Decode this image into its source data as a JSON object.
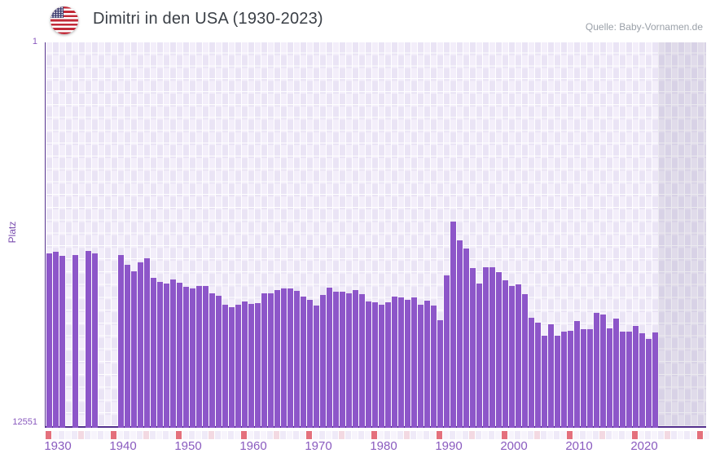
{
  "header": {
    "title": "Dimitri in den USA (1930-2023)",
    "source": "Quelle: Baby-Vornamen.de",
    "flag_icon": "us-flag-round"
  },
  "chart_data": {
    "type": "bar",
    "title": "Dimitri in den USA (1930-2023)",
    "xlabel": "",
    "ylabel": "Platz",
    "y_top_label": "1",
    "y_bottom_label": "12551",
    "ylim": [
      1,
      12551
    ],
    "y_inverted": true,
    "grid": true,
    "legend": "none",
    "x_axis_start": 1930,
    "x_axis_end": 2032,
    "future_band_start": 2024,
    "x_tick_labels": [
      "1930",
      "1940",
      "1950",
      "1960",
      "1970",
      "1980",
      "1990",
      "2000",
      "2010",
      "2020"
    ],
    "x_tick_years": [
      1930,
      1940,
      1950,
      1960,
      1970,
      1980,
      1990,
      2000,
      2010,
      2020
    ],
    "missing_years": [
      1933,
      1935,
      1938,
      1939,
      1940
    ],
    "years": [
      1930,
      1931,
      1932,
      1933,
      1934,
      1935,
      1936,
      1937,
      1938,
      1939,
      1940,
      1941,
      1942,
      1943,
      1944,
      1945,
      1946,
      1947,
      1948,
      1949,
      1950,
      1951,
      1952,
      1953,
      1954,
      1955,
      1956,
      1957,
      1958,
      1959,
      1960,
      1961,
      1962,
      1963,
      1964,
      1965,
      1966,
      1967,
      1968,
      1969,
      1970,
      1971,
      1972,
      1973,
      1974,
      1975,
      1976,
      1977,
      1978,
      1979,
      1980,
      1981,
      1982,
      1983,
      1984,
      1985,
      1986,
      1987,
      1988,
      1989,
      1990,
      1991,
      1992,
      1993,
      1994,
      1995,
      1996,
      1997,
      1998,
      1999,
      2000,
      2001,
      2002,
      2003,
      2004,
      2005,
      2006,
      2007,
      2008,
      2009,
      2010,
      2011,
      2012,
      2013,
      2014,
      2015,
      2016,
      2017,
      2018,
      2019,
      2020,
      2021,
      2022,
      2023
    ],
    "ranks": [
      6875,
      6820,
      6950,
      null,
      6925,
      null,
      6790,
      6875,
      null,
      null,
      null,
      6925,
      7245,
      7455,
      7165,
      7030,
      7670,
      7800,
      7855,
      7720,
      7825,
      7960,
      8015,
      7935,
      7935,
      8170,
      8250,
      8545,
      8625,
      8545,
      8435,
      8515,
      8490,
      8170,
      8170,
      8065,
      8015,
      8015,
      8090,
      8280,
      8385,
      8570,
      8225,
      7985,
      8120,
      8120,
      8170,
      8065,
      8200,
      8435,
      8465,
      8545,
      8465,
      8280,
      8305,
      8385,
      8305,
      8545,
      8410,
      8570,
      9050,
      7590,
      5825,
      6450,
      6715,
      7350,
      7855,
      7325,
      7325,
      7485,
      7750,
      7935,
      7880,
      8200,
      8970,
      9125,
      9550,
      9180,
      9550,
      9420,
      9390,
      9075,
      9340,
      9340,
      8810,
      8860,
      9315,
      8995,
      9420,
      9420,
      9235,
      9470,
      9660,
      9445
    ],
    "colors": {
      "bar": "#8d56c9",
      "axis_line": "#55318e",
      "tick_labels": "#8a5bbf",
      "grid_cell_dark": "#eae4f5",
      "grid_cell_light": "#f3eefa",
      "strip_decade": "#e4707c",
      "strip_half_decade": "#f3d9e2",
      "strip_neutral": "#efeaf8",
      "title_text": "#3a3f46",
      "source_text": "#9aa0a8"
    }
  }
}
